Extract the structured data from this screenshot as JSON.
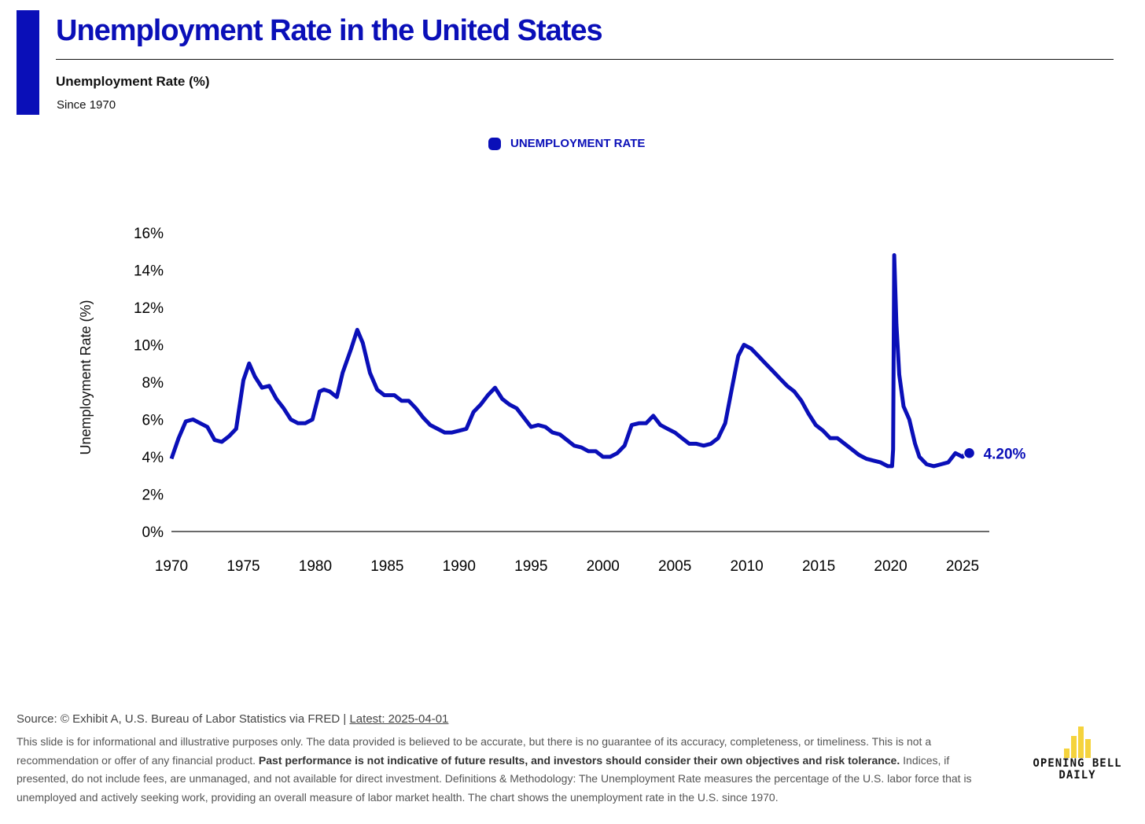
{
  "header": {
    "title": "Unemployment Rate in the United States",
    "subtitle": "Unemployment Rate (%)",
    "since": "Since 1970"
  },
  "legend": {
    "label": "UNEMPLOYMENT RATE"
  },
  "colors": {
    "series": "#0a0fb8",
    "logo": "#f5d33d"
  },
  "chart_data": {
    "type": "line",
    "title": "Unemployment Rate in the United States",
    "ylabel": "Unemployment Rate (%)",
    "xlabel": "",
    "xlim": [
      1970,
      2025
    ],
    "ylim": [
      0,
      16
    ],
    "xticks": [
      "1970",
      "1975",
      "1980",
      "1985",
      "1990",
      "1995",
      "2000",
      "2005",
      "2010",
      "2015",
      "2020",
      "2025"
    ],
    "yticks": [
      "0%",
      "2%",
      "4%",
      "6%",
      "8%",
      "10%",
      "12%",
      "14%",
      "16%"
    ],
    "legend_position": "top-center",
    "end_label": "4.20%",
    "series": [
      {
        "name": "UNEMPLOYMENT RATE",
        "points": [
          [
            1970.0,
            3.9
          ],
          [
            1970.5,
            5.0
          ],
          [
            1971.0,
            5.9
          ],
          [
            1971.5,
            6.0
          ],
          [
            1972.0,
            5.8
          ],
          [
            1972.5,
            5.6
          ],
          [
            1973.0,
            4.9
          ],
          [
            1973.5,
            4.8
          ],
          [
            1974.0,
            5.1
          ],
          [
            1974.5,
            5.5
          ],
          [
            1975.0,
            8.1
          ],
          [
            1975.4,
            9.0
          ],
          [
            1975.8,
            8.3
          ],
          [
            1976.3,
            7.7
          ],
          [
            1976.8,
            7.8
          ],
          [
            1977.3,
            7.1
          ],
          [
            1977.8,
            6.6
          ],
          [
            1978.3,
            6.0
          ],
          [
            1978.8,
            5.8
          ],
          [
            1979.3,
            5.8
          ],
          [
            1979.8,
            6.0
          ],
          [
            1980.3,
            7.5
          ],
          [
            1980.6,
            7.6
          ],
          [
            1981.0,
            7.5
          ],
          [
            1981.5,
            7.2
          ],
          [
            1981.9,
            8.5
          ],
          [
            1982.5,
            9.8
          ],
          [
            1982.92,
            10.8
          ],
          [
            1983.3,
            10.1
          ],
          [
            1983.8,
            8.5
          ],
          [
            1984.3,
            7.6
          ],
          [
            1984.8,
            7.3
          ],
          [
            1985.5,
            7.3
          ],
          [
            1986.0,
            7.0
          ],
          [
            1986.5,
            7.0
          ],
          [
            1987.0,
            6.6
          ],
          [
            1987.5,
            6.1
          ],
          [
            1988.0,
            5.7
          ],
          [
            1988.5,
            5.5
          ],
          [
            1989.0,
            5.3
          ],
          [
            1989.5,
            5.3
          ],
          [
            1990.0,
            5.4
          ],
          [
            1990.5,
            5.5
          ],
          [
            1991.0,
            6.4
          ],
          [
            1991.5,
            6.8
          ],
          [
            1992.0,
            7.3
          ],
          [
            1992.5,
            7.7
          ],
          [
            1993.0,
            7.1
          ],
          [
            1993.5,
            6.8
          ],
          [
            1994.0,
            6.6
          ],
          [
            1994.5,
            6.1
          ],
          [
            1995.0,
            5.6
          ],
          [
            1995.5,
            5.7
          ],
          [
            1996.0,
            5.6
          ],
          [
            1996.5,
            5.3
          ],
          [
            1997.0,
            5.2
          ],
          [
            1997.5,
            4.9
          ],
          [
            1998.0,
            4.6
          ],
          [
            1998.5,
            4.5
          ],
          [
            1999.0,
            4.3
          ],
          [
            1999.5,
            4.3
          ],
          [
            2000.0,
            4.0
          ],
          [
            2000.5,
            4.0
          ],
          [
            2001.0,
            4.2
          ],
          [
            2001.5,
            4.6
          ],
          [
            2002.0,
            5.7
          ],
          [
            2002.5,
            5.8
          ],
          [
            2003.0,
            5.8
          ],
          [
            2003.5,
            6.2
          ],
          [
            2004.0,
            5.7
          ],
          [
            2004.5,
            5.5
          ],
          [
            2005.0,
            5.3
          ],
          [
            2005.5,
            5.0
          ],
          [
            2006.0,
            4.7
          ],
          [
            2006.5,
            4.7
          ],
          [
            2007.0,
            4.6
          ],
          [
            2007.5,
            4.7
          ],
          [
            2008.0,
            5.0
          ],
          [
            2008.5,
            5.8
          ],
          [
            2009.0,
            7.8
          ],
          [
            2009.4,
            9.4
          ],
          [
            2009.8,
            10.0
          ],
          [
            2010.3,
            9.8
          ],
          [
            2010.8,
            9.4
          ],
          [
            2011.3,
            9.0
          ],
          [
            2011.8,
            8.6
          ],
          [
            2012.3,
            8.2
          ],
          [
            2012.8,
            7.8
          ],
          [
            2013.3,
            7.5
          ],
          [
            2013.8,
            7.0
          ],
          [
            2014.3,
            6.3
          ],
          [
            2014.8,
            5.7
          ],
          [
            2015.3,
            5.4
          ],
          [
            2015.8,
            5.0
          ],
          [
            2016.3,
            5.0
          ],
          [
            2016.8,
            4.7
          ],
          [
            2017.3,
            4.4
          ],
          [
            2017.8,
            4.1
          ],
          [
            2018.3,
            3.9
          ],
          [
            2018.8,
            3.8
          ],
          [
            2019.3,
            3.7
          ],
          [
            2019.8,
            3.5
          ],
          [
            2020.1,
            3.5
          ],
          [
            2020.17,
            4.4
          ],
          [
            2020.25,
            14.8
          ],
          [
            2020.4,
            11.1
          ],
          [
            2020.6,
            8.4
          ],
          [
            2020.9,
            6.7
          ],
          [
            2021.3,
            6.0
          ],
          [
            2021.7,
            4.7
          ],
          [
            2022.0,
            4.0
          ],
          [
            2022.5,
            3.6
          ],
          [
            2023.0,
            3.5
          ],
          [
            2023.5,
            3.6
          ],
          [
            2024.0,
            3.7
          ],
          [
            2024.5,
            4.2
          ],
          [
            2025.0,
            4.0
          ],
          [
            2025.25,
            4.2
          ]
        ]
      }
    ]
  },
  "footer": {
    "source": "Source: © Exhibit A, U.S. Bureau of Labor Statistics via FRED | ",
    "latest": "Latest: 2025-04-01",
    "disclaimer_1": "This slide is for informational and illustrative purposes only. The data provided is believed to be accurate, but there is no guarantee of its accuracy, completeness, or timeliness. This is not a recommendation or offer of any financial product. ",
    "disclaimer_bold": "Past performance is not indicative of future results, and investors should consider their own objectives and risk tolerance.",
    "disclaimer_2": " Indices, if presented, do not include fees, are unmanaged, and not available for direct investment. Definitions & Methodology: The Unemployment Rate measures the percentage of the U.S. labor force that is unemployed and actively seeking work, providing an overall measure of labor market health. The chart shows the unemployment rate in the U.S. since 1970.",
    "logo_line1": "OPENING BELL",
    "logo_line2": "DAILY"
  }
}
